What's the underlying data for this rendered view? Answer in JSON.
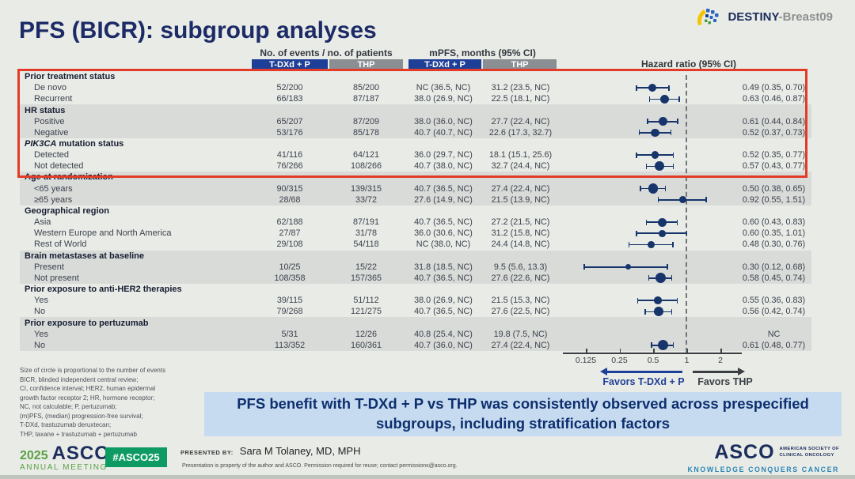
{
  "header": {
    "title": "PFS (BICR): subgroup analyses",
    "logo_primary": "DESTINY",
    "logo_secondary": "-Breast09"
  },
  "table": {
    "headers": {
      "events": "No. of events / no. of patients",
      "mpfs": "mPFS, months (95% CI)",
      "hazard": "Hazard ratio (95% CI)",
      "arm_tdxd": "T-DXd + P",
      "arm_thp": "THP"
    },
    "groups": [
      {
        "label": "Prior treatment status",
        "rows": [
          {
            "label": "De novo",
            "events_tdxd": "52/200",
            "events_thp": "85/200",
            "mpfs_tdxd": "NC (36.5, NC)",
            "mpfs_thp": "31.2 (23.5, NC)",
            "hr_text": "0.49 (0.35, 0.70)",
            "hr": 0.49,
            "ci_low": 0.35,
            "ci_high": 0.7,
            "events_n": 52
          },
          {
            "label": "Recurrent",
            "events_tdxd": "66/183",
            "events_thp": "87/187",
            "mpfs_tdxd": "38.0 (26.9, NC)",
            "mpfs_thp": "22.5 (18.1, NC)",
            "hr_text": "0.63 (0.46, 0.87)",
            "hr": 0.63,
            "ci_low": 0.46,
            "ci_high": 0.87,
            "events_n": 66
          }
        ]
      },
      {
        "label": "HR status",
        "rows": [
          {
            "label": "Positive",
            "events_tdxd": "65/207",
            "events_thp": "87/209",
            "mpfs_tdxd": "38.0 (36.0, NC)",
            "mpfs_thp": "27.7 (22.4, NC)",
            "hr_text": "0.61 (0.44, 0.84)",
            "hr": 0.61,
            "ci_low": 0.44,
            "ci_high": 0.84,
            "events_n": 65
          },
          {
            "label": "Negative",
            "events_tdxd": "53/176",
            "events_thp": "85/178",
            "mpfs_tdxd": "40.7 (40.7, NC)",
            "mpfs_thp": "22.6 (17.3, 32.7)",
            "hr_text": "0.52 (0.37, 0.73)",
            "hr": 0.52,
            "ci_low": 0.37,
            "ci_high": 0.73,
            "events_n": 53
          }
        ]
      },
      {
        "label_italic": "PIK3CA",
        "label": " mutation status",
        "rows": [
          {
            "label": "Detected",
            "events_tdxd": "41/116",
            "events_thp": "64/121",
            "mpfs_tdxd": "36.0 (29.7, NC)",
            "mpfs_thp": "18.1 (15.1, 25.6)",
            "hr_text": "0.52 (0.35, 0.77)",
            "hr": 0.52,
            "ci_low": 0.35,
            "ci_high": 0.77,
            "events_n": 41
          },
          {
            "label": "Not detected",
            "events_tdxd": "76/266",
            "events_thp": "108/266",
            "mpfs_tdxd": "40.7 (38.0, NC)",
            "mpfs_thp": "32.7 (24.4, NC)",
            "hr_text": "0.57 (0.43, 0.77)",
            "hr": 0.57,
            "ci_low": 0.43,
            "ci_high": 0.77,
            "events_n": 76
          }
        ]
      },
      {
        "label": "Age at randomization",
        "rows": [
          {
            "label": "<65 years",
            "events_tdxd": "90/315",
            "events_thp": "139/315",
            "mpfs_tdxd": "40.7 (36.5, NC)",
            "mpfs_thp": "27.4 (22.4, NC)",
            "hr_text": "0.50 (0.38, 0.65)",
            "hr": 0.5,
            "ci_low": 0.38,
            "ci_high": 0.65,
            "events_n": 90
          },
          {
            "label": "≥65 years",
            "events_tdxd": "28/68",
            "events_thp": "33/72",
            "mpfs_tdxd": "27.6 (14.9, NC)",
            "mpfs_thp": "21.5 (13.9, NC)",
            "hr_text": "0.92 (0.55, 1.51)",
            "hr": 0.92,
            "ci_low": 0.55,
            "ci_high": 1.51,
            "events_n": 28
          }
        ]
      },
      {
        "label": "Geographical region",
        "rows": [
          {
            "label": "Asia",
            "events_tdxd": "62/188",
            "events_thp": "87/191",
            "mpfs_tdxd": "40.7 (36.5, NC)",
            "mpfs_thp": "27.2 (21.5, NC)",
            "hr_text": "0.60 (0.43, 0.83)",
            "hr": 0.6,
            "ci_low": 0.43,
            "ci_high": 0.83,
            "events_n": 62
          },
          {
            "label": "Western Europe and North America",
            "events_tdxd": "27/87",
            "events_thp": "31/78",
            "mpfs_tdxd": "36.0 (30.6, NC)",
            "mpfs_thp": "31.2 (15.8, NC)",
            "hr_text": "0.60 (0.35, 1.01)",
            "hr": 0.6,
            "ci_low": 0.35,
            "ci_high": 1.01,
            "events_n": 27
          },
          {
            "label": "Rest of World",
            "events_tdxd": "29/108",
            "events_thp": "54/118",
            "mpfs_tdxd": "NC (38.0, NC)",
            "mpfs_thp": "24.4 (14.8, NC)",
            "hr_text": "0.48 (0.30, 0.76)",
            "hr": 0.48,
            "ci_low": 0.3,
            "ci_high": 0.76,
            "events_n": 29
          }
        ]
      },
      {
        "label": "Brain metastases at baseline",
        "rows": [
          {
            "label": "Present",
            "events_tdxd": "10/25",
            "events_thp": "15/22",
            "mpfs_tdxd": "31.8 (18.5, NC)",
            "mpfs_thp": "9.5 (5.6, 13.3)",
            "hr_text": "0.30 (0.12, 0.68)",
            "hr": 0.3,
            "ci_low": 0.12,
            "ci_high": 0.68,
            "events_n": 10
          },
          {
            "label": "Not present",
            "events_tdxd": "108/358",
            "events_thp": "157/365",
            "mpfs_tdxd": "40.7 (36.5, NC)",
            "mpfs_thp": "27.6 (22.6, NC)",
            "hr_text": "0.58 (0.45, 0.74)",
            "hr": 0.58,
            "ci_low": 0.45,
            "ci_high": 0.74,
            "events_n": 108
          }
        ]
      },
      {
        "label": "Prior exposure to anti-HER2 therapies",
        "rows": [
          {
            "label": "Yes",
            "events_tdxd": "39/115",
            "events_thp": "51/112",
            "mpfs_tdxd": "38.0 (26.9, NC)",
            "mpfs_thp": "21.5 (15.3, NC)",
            "hr_text": "0.55 (0.36, 0.83)",
            "hr": 0.55,
            "ci_low": 0.36,
            "ci_high": 0.83,
            "events_n": 39
          },
          {
            "label": "No",
            "events_tdxd": "79/268",
            "events_thp": "121/275",
            "mpfs_tdxd": "40.7 (36.5, NC)",
            "mpfs_thp": "27.6 (22.5, NC)",
            "hr_text": "0.56 (0.42, 0.74)",
            "hr": 0.56,
            "ci_low": 0.42,
            "ci_high": 0.74,
            "events_n": 79
          }
        ]
      },
      {
        "label": "Prior exposure to pertuzumab",
        "rows": [
          {
            "label": "Yes",
            "events_tdxd": "5/31",
            "events_thp": "12/26",
            "mpfs_tdxd": "40.8 (25.4, NC)",
            "mpfs_thp": "19.8 (7.5, NC)",
            "hr_text": "NC",
            "hr": null,
            "ci_low": null,
            "ci_high": null,
            "events_n": 5
          },
          {
            "label": "No",
            "events_tdxd": "113/352",
            "events_thp": "160/361",
            "mpfs_tdxd": "40.7 (36.0, NC)",
            "mpfs_thp": "27.4 (22.4, NC)",
            "hr_text": "0.61 (0.48, 0.77)",
            "hr": 0.61,
            "ci_low": 0.48,
            "ci_high": 0.77,
            "events_n": 113
          }
        ]
      }
    ],
    "axis": {
      "tick_labels": [
        "0.125",
        "0.25",
        "0.5",
        "1",
        "2"
      ],
      "tick_values": [
        0.125,
        0.25,
        0.5,
        1,
        2
      ],
      "favors_left": "Favors T-DXd + P",
      "favors_right": "Favors THP"
    }
  },
  "chart_data": {
    "type": "scatter",
    "subtype": "forest-plot",
    "title": "PFS (BICR): subgroup analyses",
    "xlabel": "Hazard ratio (95% CI)",
    "x_scale": "log2",
    "xlim": [
      0.125,
      2
    ],
    "reference_line": 1,
    "categories": [
      "De novo",
      "Recurrent",
      "Positive",
      "Negative",
      "Detected",
      "Not detected",
      "<65 years",
      "≥65 years",
      "Asia",
      "Western Europe and North America",
      "Rest of World",
      "Present",
      "Not present",
      "Yes (anti-HER2)",
      "No (anti-HER2)",
      "Yes (pertuzumab)",
      "No (pertuzumab)"
    ],
    "hazard_ratios": [
      0.49,
      0.63,
      0.61,
      0.52,
      0.52,
      0.57,
      0.5,
      0.92,
      0.6,
      0.6,
      0.48,
      0.3,
      0.58,
      0.55,
      0.56,
      null,
      0.61
    ],
    "ci_low": [
      0.35,
      0.46,
      0.44,
      0.37,
      0.35,
      0.43,
      0.38,
      0.55,
      0.43,
      0.35,
      0.3,
      0.12,
      0.45,
      0.36,
      0.42,
      null,
      0.48
    ],
    "ci_high": [
      0.7,
      0.87,
      0.84,
      0.73,
      0.77,
      0.77,
      0.65,
      1.51,
      0.83,
      1.01,
      0.76,
      0.68,
      0.74,
      0.83,
      0.74,
      null,
      0.77
    ],
    "marker_size_by": "number of events",
    "legend_position": "none"
  },
  "colors": {
    "arm_tdxd_bg": "#1e3f97",
    "arm_thp_bg": "#8a8f93",
    "marker": "#17356b",
    "highlight_border": "#e23b27",
    "banner_bg": "#c6daf0",
    "badge_green": "#0e9b63"
  },
  "footnote_lines": [
    "Size of circle is proportional to the number of events",
    "BICR, blinded independent central review;",
    "CI, confidence interval; HER2, human epidermal",
    "growth factor receptor 2; HR, hormone receptor;",
    "NC, not calculable; P, pertuzumab;",
    "(m)PFS, (median) progression-free survival;",
    "T-DXd, trastuzumab deruxtecan;",
    "THP, taxane + trastuzumab + pertuzumab"
  ],
  "banner_text": "PFS benefit with T-DXd + P vs THP was consistently observed across prespecified subgroups, including stratification factors",
  "footer": {
    "year": "2025",
    "org": "ASCO",
    "meeting": "ANNUAL MEETING",
    "hashtag": "#ASCO25",
    "presented_by_label": "PRESENTED BY:",
    "presenter": "Sara M Tolaney, MD, MPH",
    "permission": "Presentation is property of the author and ASCO. Permission required for reuse; contact permissions@asco.org.",
    "asco_logo": "ASCO",
    "asco_society_line1": "AMERICAN SOCIETY OF",
    "asco_society_line2": "CLINICAL ONCOLOGY",
    "asco_tagline": "KNOWLEDGE CONQUERS CANCER"
  }
}
